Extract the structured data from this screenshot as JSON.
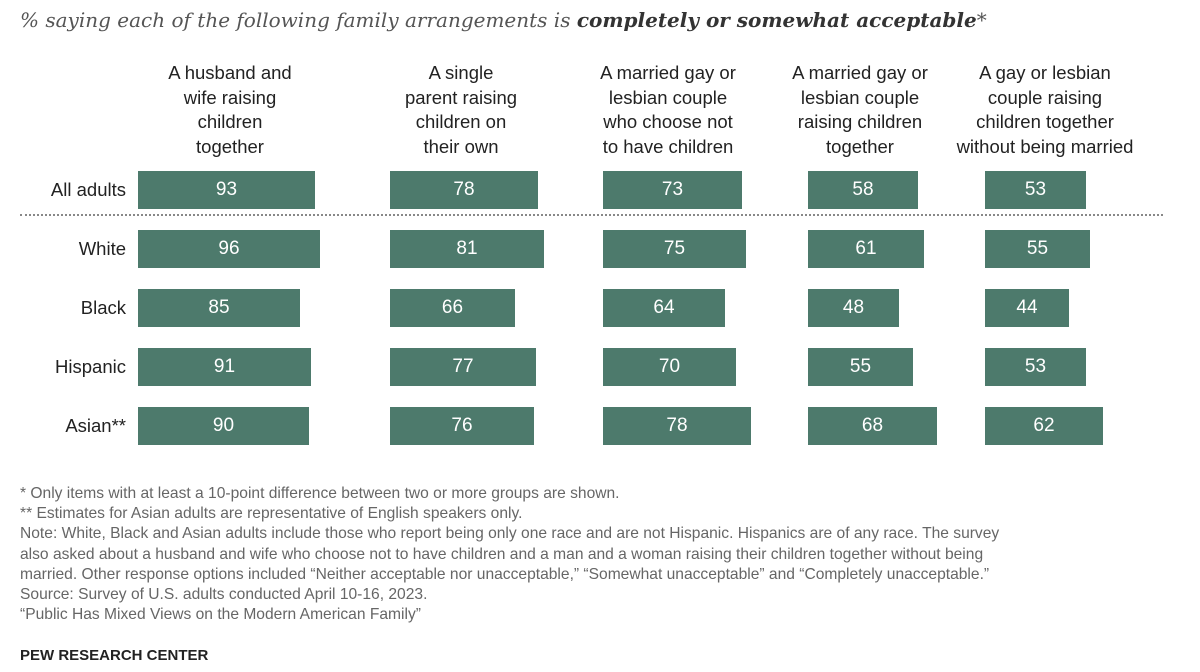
{
  "title_prefix": "% saying each of the following family arrangements is ",
  "title_emphasis": "completely or somewhat acceptable",
  "title_suffix": "*",
  "chart_data": {
    "type": "bar",
    "categories": [
      "A husband and wife raising children together",
      "A single parent raising children on their own",
      "A married gay or lesbian couple who choose not to have children",
      "A married gay or lesbian couple raising children together",
      "A gay or lesbian couple raising children together without being married"
    ],
    "category_labels": [
      "A husband and\nwife raising\nchildren\ntogether",
      "A single\nparent raising\nchildren on\ntheir own",
      "A married gay or\nlesbian couple\nwho choose not\nto have children",
      "A married gay or\nlesbian couple\nraising children\ntogether",
      "A gay or lesbian\ncouple raising\nchildren together\nwithout being married"
    ],
    "series": [
      {
        "name": "All adults",
        "values": [
          93,
          78,
          73,
          58,
          53
        ]
      },
      {
        "name": "White",
        "values": [
          96,
          81,
          75,
          61,
          55
        ]
      },
      {
        "name": "Black",
        "values": [
          85,
          66,
          64,
          48,
          44
        ]
      },
      {
        "name": "Hispanic",
        "values": [
          91,
          77,
          70,
          55,
          53
        ]
      },
      {
        "name": "Asian**",
        "values": [
          90,
          76,
          78,
          68,
          62
        ]
      }
    ],
    "xlim": [
      0,
      100
    ],
    "color": "#4d7a6c"
  },
  "notes": [
    "* Only items with at least a 10-point difference between two or more groups are shown.",
    "** Estimates for Asian adults are representative of English speakers only.",
    "Note: White, Black and Asian adults include those who report being only one race and are not Hispanic. Hispanics are of any race. The survey",
    "also asked about a husband and wife who choose not to have children and a man and a woman raising their children together without being",
    "married. Other response options included “Neither acceptable nor unacceptable,” “Somewhat unacceptable” and “Completely unacceptable.”",
    "Source: Survey of U.S. adults conducted April 10-16, 2023.",
    "“Public Has Mixed Views on the Modern American Family”"
  ],
  "source_org": "PEW RESEARCH CENTER"
}
